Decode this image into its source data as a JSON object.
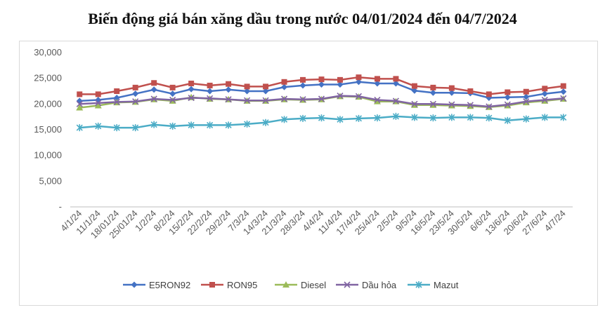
{
  "chart_data": {
    "type": "line",
    "title": "Biến động giá bán xăng dầu trong nước 04/01/2024 đến 04/7/2024",
    "xlabel": "",
    "ylabel": "",
    "ylim": [
      0,
      30000
    ],
    "yticks": [
      "-",
      "5,000",
      "10,000",
      "15,000",
      "20,000",
      "25,000",
      "30,000"
    ],
    "grid": false,
    "legend_position": "bottom",
    "categories": [
      "4/1/24",
      "11/1/24",
      "18/01/24",
      "25/01/24",
      "1/2/24",
      "8/2/24",
      "15/2/24",
      "22/2/24",
      "29/2/24",
      "7/3/24",
      "14/3/24",
      "21/3/24",
      "28/3/24",
      "4/4/24",
      "11/4/24",
      "17/4/24",
      "25/4/24",
      "2/5/24",
      "9/5/24",
      "16/5/24",
      "23/5/24",
      "30/5/24",
      "6/6/24",
      "13/6/24",
      "20/6/24",
      "27/6/24",
      "4/7/24"
    ],
    "series": [
      {
        "name": "E5RON92",
        "color": "#4472c4",
        "marker": "diamond",
        "values": [
          20600,
          20800,
          21200,
          22000,
          22800,
          22000,
          22900,
          22500,
          22800,
          22500,
          22500,
          23300,
          23600,
          23800,
          23800,
          24300,
          24000,
          24000,
          22600,
          22200,
          22200,
          22100,
          21200,
          21300,
          21400,
          22000,
          22400
        ]
      },
      {
        "name": "RON95",
        "color": "#c0504d",
        "marker": "square",
        "values": [
          21900,
          21900,
          22500,
          23200,
          24100,
          23200,
          24000,
          23600,
          23900,
          23400,
          23400,
          24300,
          24700,
          24800,
          24700,
          25200,
          24900,
          24900,
          23500,
          23200,
          23100,
          22500,
          21900,
          22300,
          22400,
          23000,
          23500
        ]
      },
      {
        "name": "Diesel",
        "color": "#9bbb59",
        "marker": "triangle",
        "values": [
          19300,
          19700,
          20300,
          20400,
          20900,
          20600,
          21300,
          21000,
          20900,
          20600,
          20600,
          20900,
          20800,
          20900,
          21500,
          21400,
          20500,
          20500,
          19800,
          19800,
          19700,
          19600,
          19400,
          19700,
          20300,
          20600,
          21000
        ]
      },
      {
        "name": "Dầu hỏa",
        "color": "#8064a2",
        "marker": "x",
        "values": [
          20000,
          20200,
          20400,
          20500,
          21000,
          20800,
          21200,
          21100,
          20900,
          20700,
          20700,
          21000,
          20900,
          21000,
          21600,
          21500,
          20800,
          20600,
          20000,
          20000,
          19900,
          19800,
          19500,
          19900,
          20500,
          20800,
          21100
        ]
      },
      {
        "name": "Mazut",
        "color": "#4bacc6",
        "marker": "asterisk",
        "values": [
          15400,
          15700,
          15400,
          15400,
          16000,
          15700,
          15900,
          15900,
          15900,
          16100,
          16400,
          17000,
          17200,
          17300,
          17000,
          17200,
          17300,
          17600,
          17400,
          17300,
          17400,
          17400,
          17300,
          16800,
          17100,
          17400,
          17400
        ]
      }
    ]
  }
}
